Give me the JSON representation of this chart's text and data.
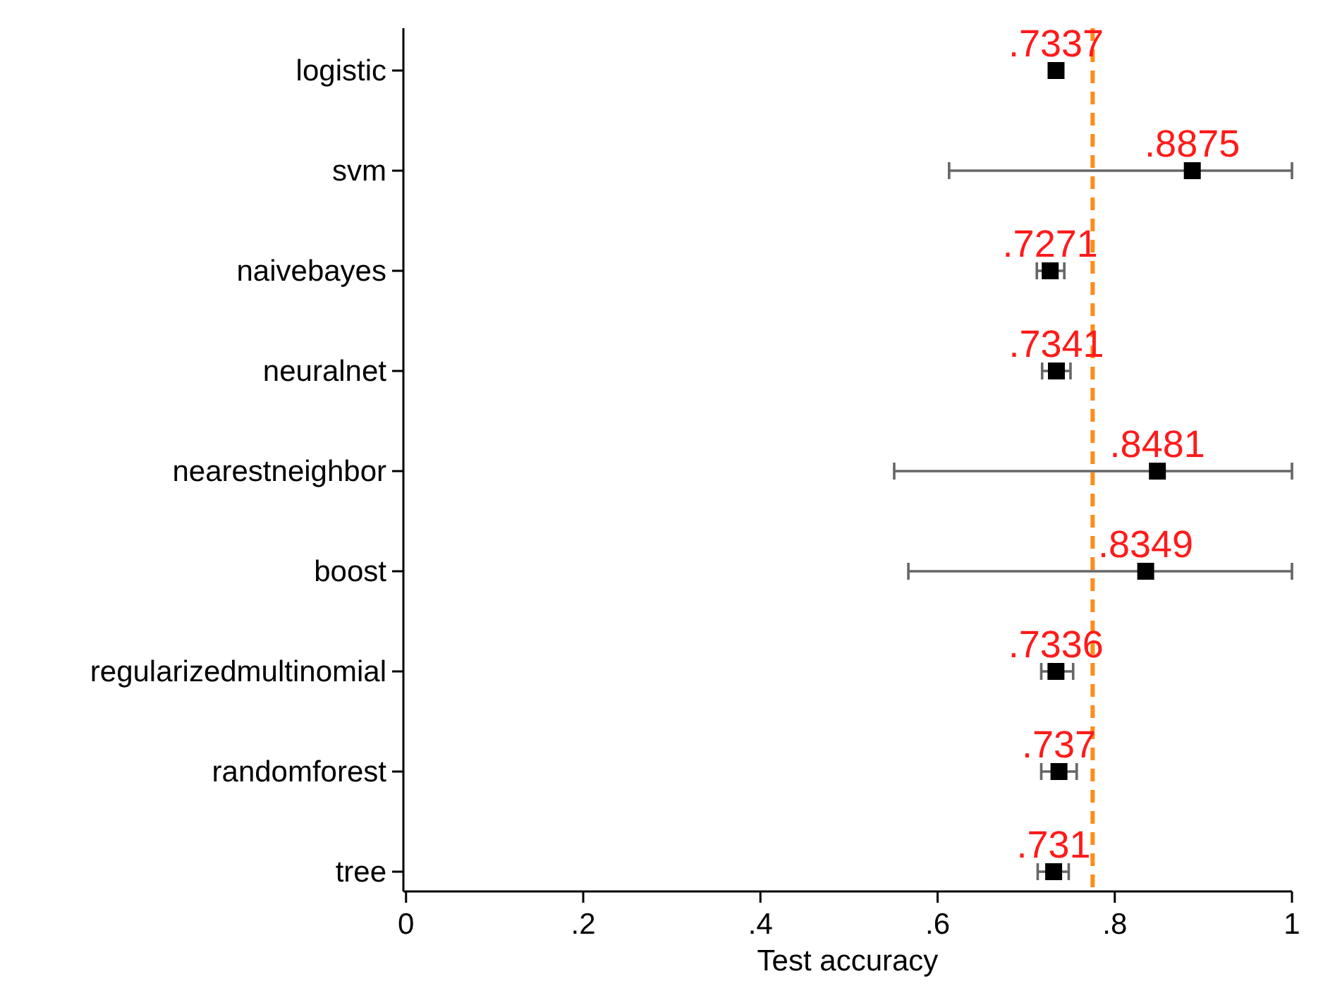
{
  "chart_data": {
    "type": "scatter",
    "orientation": "horizontal",
    "xlabel": "Test accuracy",
    "categories": [
      "logistic",
      "svm",
      "naivebayes",
      "neuralnet",
      "nearestneighbor",
      "boost",
      "regularizedmultinomial",
      "randomforest",
      "tree"
    ],
    "values": [
      0.7337,
      0.8875,
      0.7271,
      0.7341,
      0.8481,
      0.8349,
      0.7336,
      0.737,
      0.731
    ],
    "value_labels": [
      ".7337",
      ".8875",
      ".7271",
      ".7341",
      ".8481",
      ".8349",
      ".7336",
      ".737",
      ".731"
    ],
    "errors": [
      null,
      [
        0.613,
        1.0
      ],
      [
        0.712,
        0.743
      ],
      [
        0.718,
        0.75
      ],
      [
        0.551,
        1.0
      ],
      [
        0.567,
        1.0
      ],
      [
        0.717,
        0.753
      ],
      [
        0.717,
        0.757
      ],
      [
        0.713,
        0.748
      ]
    ],
    "color": "#000000",
    "marker": "square",
    "xlim": [
      -0.003,
      1
    ],
    "xticks": [
      0,
      {
        "value": 0.2,
        "label": ".2"
      },
      {
        "value": 0.4,
        "label": ".4"
      },
      {
        "value": 0.6,
        "label": ".6"
      },
      {
        "value": 0.8,
        "label": ".8"
      },
      1
    ],
    "ref_lines": [
      {
        "axis": "x",
        "value": 0.775,
        "color": "#ff8c1a",
        "line_style": "dashed"
      }
    ],
    "grid": false
  }
}
